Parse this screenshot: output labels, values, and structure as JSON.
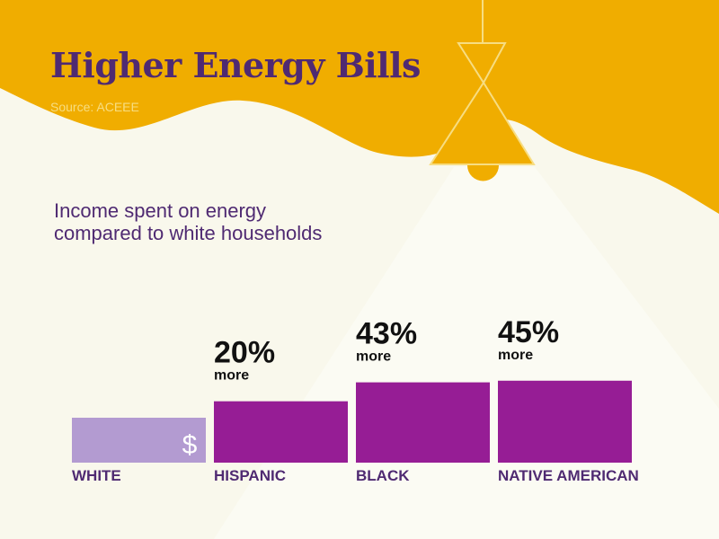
{
  "title": "Higher Energy Bills",
  "source": "Source: ACEEE",
  "subtitle": {
    "line1": "Income spent on energy",
    "line2": "compared to white households"
  },
  "colors": {
    "background": "#f9f8ec",
    "banner": "#f0ad00",
    "light_beam": "#fbfbf3",
    "title_text": "#4f2a72",
    "bar_baseline": "#b39bd1",
    "bar": "#961d95",
    "value_text": "#111111"
  },
  "icons": {
    "baseline_bar": "dollar-sign-icon",
    "decor": "pendant-lamp-icon"
  },
  "chart_data": {
    "type": "bar",
    "categories": [
      "WHITE",
      "HISPANIC",
      "BLACK",
      "NATIVE AMERICAN"
    ],
    "values": [
      0,
      20,
      43,
      45
    ],
    "value_labels": [
      "",
      "20%",
      "43%",
      "45%"
    ],
    "value_sublabels": [
      "",
      "more",
      "more",
      "more"
    ],
    "baseline_icon": "$",
    "title": "Higher Energy Bills",
    "subtitle": "Income spent on energy compared to white households",
    "ylabel": "",
    "xlabel": ""
  }
}
